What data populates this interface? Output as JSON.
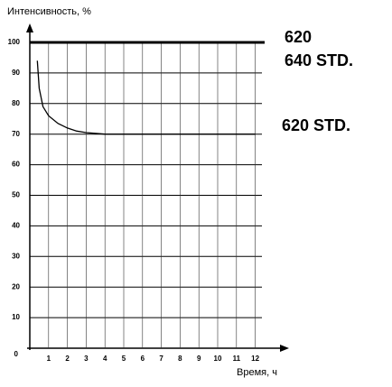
{
  "chart_data": {
    "type": "line",
    "y_label": "Интенсивность, %",
    "x_label": "Время, ч",
    "xlim": [
      0,
      12.5
    ],
    "ylim": [
      0,
      100
    ],
    "xticks": [
      1,
      2,
      3,
      4,
      5,
      6,
      7,
      8,
      9,
      10,
      11,
      12
    ],
    "yticks": [
      0,
      10,
      20,
      30,
      40,
      50,
      60,
      70,
      80,
      90,
      100
    ],
    "grid": true,
    "series": [
      {
        "name": "620",
        "color": "#000000",
        "x": [
          0,
          12.5
        ],
        "values": [
          100,
          100
        ]
      },
      {
        "name": "640 STD.",
        "color": "#000000",
        "x": [
          0,
          12.5
        ],
        "values": [
          100,
          100
        ]
      },
      {
        "name": "620 STD.",
        "color": "#000000",
        "x": [
          0.4,
          0.5,
          0.7,
          1,
          1.5,
          2,
          2.5,
          3,
          4,
          5,
          6,
          8,
          10,
          12
        ],
        "values": [
          94,
          85,
          79,
          76,
          73.5,
          72,
          71,
          70.5,
          70,
          70,
          70,
          70,
          70,
          70
        ]
      }
    ]
  }
}
